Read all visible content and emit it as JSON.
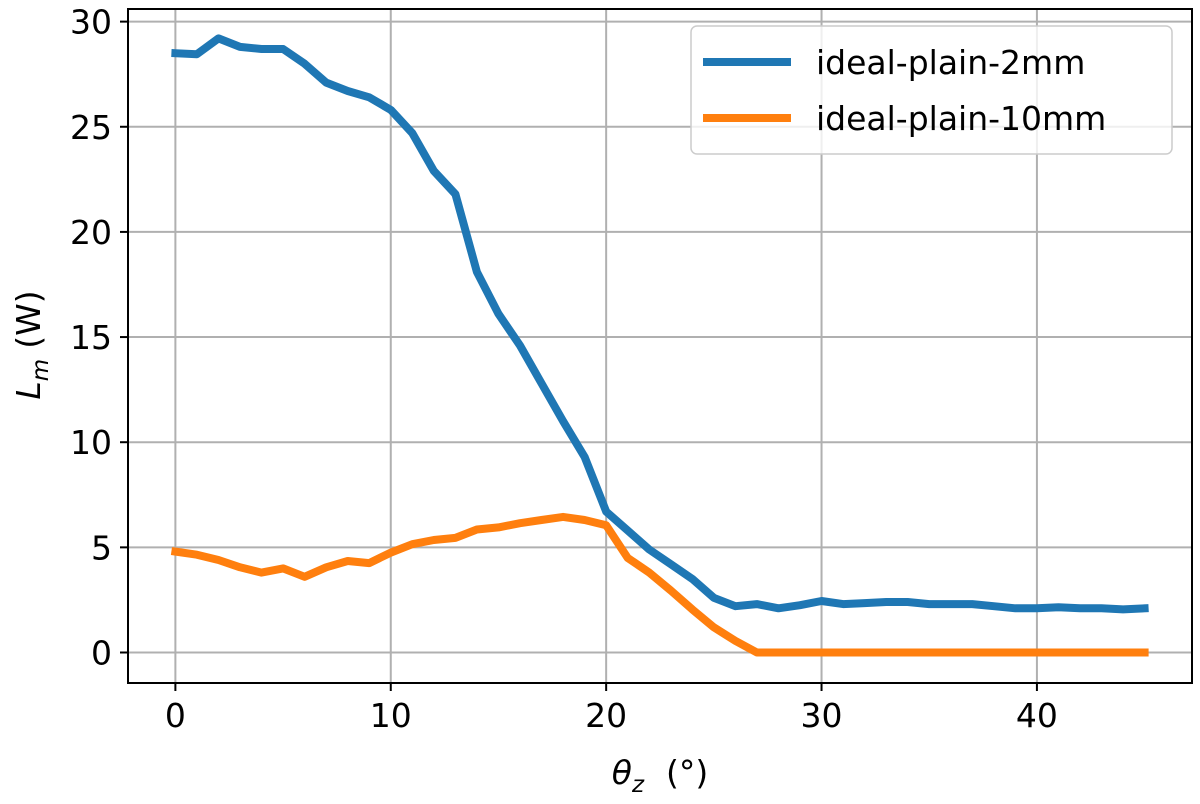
{
  "chart_data": {
    "type": "line",
    "xlabel_symbol": "θ",
    "xlabel_sub": "z",
    "xlabel_unit": "(°)",
    "ylabel_symbol": "L",
    "ylabel_sub": "m",
    "ylabel_unit": "(W)",
    "xlim": [
      -2.2,
      47.2
    ],
    "ylim": [
      -1.45,
      30.6
    ],
    "xticks": [
      0,
      10,
      20,
      30,
      40
    ],
    "yticks": [
      0,
      5,
      10,
      15,
      20,
      25,
      30
    ],
    "grid": true,
    "legend_position": "top-right",
    "x": [
      0,
      1,
      2,
      3,
      4,
      5,
      6,
      7,
      8,
      9,
      10,
      11,
      12,
      13,
      14,
      15,
      16,
      17,
      18,
      19,
      20,
      21,
      22,
      23,
      24,
      25,
      26,
      27,
      28,
      29,
      30,
      31,
      32,
      33,
      34,
      35,
      36,
      37,
      38,
      39,
      40,
      41,
      42,
      43,
      44,
      45
    ],
    "series": [
      {
        "name": "ideal-plain-2mm",
        "color": "#1f77b4",
        "values": [
          28.5,
          28.45,
          29.2,
          28.8,
          28.7,
          28.7,
          28.0,
          27.1,
          26.7,
          26.4,
          25.8,
          24.7,
          22.9,
          21.8,
          18.1,
          16.1,
          14.6,
          12.8,
          11.0,
          9.3,
          6.7,
          5.8,
          4.9,
          4.2,
          3.5,
          2.6,
          2.2,
          2.3,
          2.1,
          2.25,
          2.45,
          2.3,
          2.35,
          2.4,
          2.4,
          2.3,
          2.3,
          2.3,
          2.2,
          2.1,
          2.1,
          2.15,
          2.1,
          2.1,
          2.05,
          2.1
        ]
      },
      {
        "name": "ideal-plain-10mm",
        "color": "#ff7f0e",
        "values": [
          4.8,
          4.65,
          4.4,
          4.05,
          3.8,
          4.0,
          3.6,
          4.05,
          4.35,
          4.25,
          4.75,
          5.15,
          5.35,
          5.45,
          5.85,
          5.95,
          6.15,
          6.3,
          6.45,
          6.3,
          6.05,
          4.5,
          3.8,
          2.95,
          2.05,
          1.2,
          0.55,
          0.0,
          0.0,
          0.0,
          0.0,
          0.0,
          0.0,
          0.0,
          0.0,
          0.0,
          0.0,
          0.0,
          0.0,
          0.0,
          0.0,
          0.0,
          0.0,
          0.0,
          0.0,
          0.0
        ]
      }
    ]
  }
}
